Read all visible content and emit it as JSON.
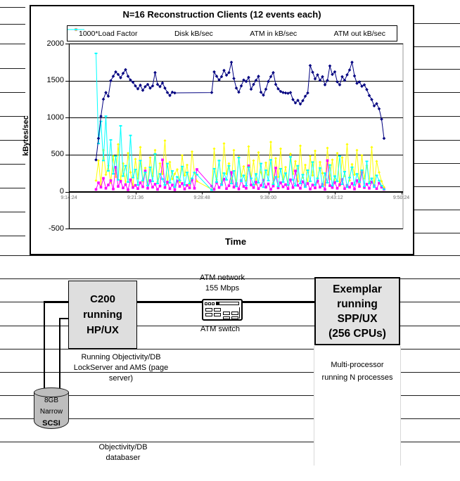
{
  "chart_data": {
    "type": "line",
    "title": "N=16 Reconstruction Clients (12 events each)",
    "xlabel": "Time",
    "ylabel": "kBytes/sec",
    "ylim": [
      -500,
      2000
    ],
    "y_ticks": [
      2000,
      1500,
      1000,
      500,
      0,
      -500
    ],
    "x_tick_labels": [
      "9:14:24",
      "9:21:36",
      "9:28:48",
      "9:36:00",
      "9:43:12",
      "9:50:24"
    ],
    "x_tick_seconds": [
      0,
      432,
      864,
      1296,
      1728,
      2160
    ],
    "time_base": "9:14:24",
    "grid": true,
    "legend_position": "top",
    "t_seconds": [
      176,
      192,
      208,
      224,
      240,
      256,
      272,
      288,
      304,
      320,
      336,
      352,
      368,
      384,
      400,
      416,
      432,
      448,
      464,
      480,
      496,
      512,
      528,
      544,
      560,
      576,
      592,
      608,
      624,
      640,
      656,
      672,
      688,
      704,
      720,
      736,
      752,
      768,
      784,
      800,
      816,
      832,
      928,
      944,
      960,
      976,
      992,
      1008,
      1024,
      1040,
      1056,
      1072,
      1088,
      1104,
      1120,
      1136,
      1152,
      1168,
      1184,
      1200,
      1216,
      1232,
      1248,
      1264,
      1280,
      1296,
      1312,
      1328,
      1344,
      1360,
      1376,
      1392,
      1408,
      1424,
      1440,
      1456,
      1472,
      1488,
      1504,
      1520,
      1536,
      1552,
      1568,
      1584,
      1600,
      1616,
      1632,
      1648,
      1664,
      1680,
      1696,
      1712,
      1728,
      1744,
      1760,
      1776,
      1792,
      1808,
      1824,
      1840,
      1856,
      1872,
      1888,
      1904,
      1920,
      1936,
      1952,
      1968,
      1984,
      2000,
      2016,
      2032,
      2048
    ],
    "series": [
      {
        "name": "1000*Load Factor",
        "color": "#000080",
        "marker": "diamond",
        "values": [
          430,
          720,
          1020,
          1250,
          1340,
          1290,
          1500,
          1560,
          1620,
          1585,
          1540,
          1600,
          1650,
          1560,
          1510,
          1480,
          1430,
          1390,
          1440,
          1370,
          1420,
          1450,
          1400,
          1430,
          1610,
          1450,
          1420,
          1470,
          1400,
          1340,
          1300,
          1345,
          1335,
          null,
          null,
          null,
          null,
          null,
          null,
          null,
          null,
          null,
          1340,
          1620,
          1560,
          1510,
          1555,
          1640,
          1575,
          1610,
          1750,
          1530,
          1400,
          1345,
          1430,
          1510,
          1490,
          1545,
          1385,
          1450,
          1505,
          1560,
          1345,
          1305,
          1385,
          1490,
          1555,
          1610,
          1450,
          1390,
          1355,
          1340,
          1335,
          1330,
          1340,
          1245,
          1200,
          1235,
          1185,
          1230,
          1290,
          1335,
          1705,
          1615,
          1525,
          1580,
          1505,
          1555,
          1445,
          1505,
          1700,
          1585,
          1620,
          1485,
          1445,
          1555,
          1505,
          1580,
          1645,
          1750,
          1565,
          1465,
          1485,
          1425,
          1445,
          1380,
          1300,
          1245,
          1160,
          1190,
          1120,
          980,
          720
        ]
      },
      {
        "name": "Disk kB/sec",
        "color": "#ff00ff",
        "marker": "square",
        "values": [
          30,
          120,
          60,
          180,
          45,
          90,
          150,
          35,
          330,
          70,
          140,
          50,
          95,
          25,
          160,
          55,
          85,
          40,
          120,
          65,
          280,
          45,
          150,
          60,
          100,
          30,
          75,
          430,
          55,
          130,
          40,
          90,
          25,
          145,
          70,
          110,
          35,
          85,
          50,
          160,
          45,
          300,
          75,
          30,
          125,
          55,
          95,
          170,
          40,
          80,
          260,
          60,
          110,
          35,
          150,
          70,
          45,
          350,
          90,
          55,
          130,
          40,
          85,
          155,
          60,
          105,
          30,
          75,
          320,
          50,
          120,
          65,
          95,
          40,
          160,
          55,
          280,
          85,
          45,
          135,
          70,
          110,
          35,
          90,
          50,
          145,
          60,
          100,
          30,
          420,
          80,
          55,
          125,
          45,
          95,
          165,
          40,
          85,
          60,
          110,
          35,
          150,
          70,
          260,
          55,
          100,
          45,
          130,
          80,
          40,
          115,
          60,
          30
        ]
      },
      {
        "name": "ATM in kB/sec",
        "color": "#ffff00",
        "marker": "diamond-small",
        "values": [
          150,
          420,
          90,
          560,
          230,
          350,
          120,
          480,
          200,
          640,
          160,
          380,
          100,
          520,
          260,
          80,
          440,
          180,
          600,
          140,
          320,
          90,
          460,
          210,
          560,
          130,
          380,
          240,
          690,
          110,
          400,
          170,
          240,
          300,
          130,
          490,
          220,
          360,
          90,
          540,
          250,
          140,
          30,
          580,
          160,
          420,
          110,
          650,
          240,
          380,
          130,
          560,
          90,
          470,
          210,
          340,
          150,
          610,
          180,
          420,
          100,
          530,
          260,
          140,
          390,
          230,
          670,
          120,
          450,
          200,
          580,
          160,
          330,
          90,
          510,
          240,
          410,
          140,
          620,
          190,
          360,
          110,
          480,
          220,
          550,
          130,
          400,
          250,
          90,
          590,
          170,
          430,
          120,
          520,
          80,
          460,
          210,
          640,
          150,
          370,
          230,
          560,
          100,
          490,
          180,
          350,
          130,
          600,
          90,
          410,
          260,
          140,
          60
        ]
      },
      {
        "name": "ATM out kB/sec",
        "color": "#00ffff",
        "marker": "dash",
        "values": [
          1870,
          650,
          950,
          420,
          1020,
          280,
          700,
          240,
          480,
          160,
          890,
          210,
          350,
          130,
          760,
          190,
          300,
          90,
          420,
          150,
          260,
          80,
          330,
          140,
          510,
          110,
          240,
          170,
          90,
          380,
          120,
          280,
          60,
          200,
          150,
          340,
          90,
          260,
          110,
          180,
          260,
          230,
          20,
          310,
          130,
          420,
          90,
          250,
          160,
          350,
          110,
          280,
          70,
          460,
          140,
          220,
          80,
          330,
          180,
          90,
          240,
          120,
          380,
          60,
          290,
          150,
          430,
          100,
          200,
          70,
          310,
          130,
          250,
          90,
          470,
          160,
          80,
          350,
          110,
          230,
          60,
          290,
          140,
          400,
          90,
          180,
          320,
          70,
          250,
          120,
          360,
          80,
          210,
          140,
          480,
          100,
          270,
          60,
          190,
          330,
          90,
          240,
          130,
          290,
          70,
          410,
          110,
          180,
          60,
          220,
          150,
          80,
          30
        ]
      }
    ]
  },
  "diagram": {
    "c200_line1": "C200",
    "c200_line2": "running",
    "c200_line3": "HP/UX",
    "exemplar_line1": "Exemplar",
    "exemplar_line2": "running",
    "exemplar_line3": "SPP/UX",
    "exemplar_line4": "(256 CPUs)",
    "atm_network_label": "ATM network",
    "atm_rate_label": "155 Mbps",
    "atm_switch_label": "ATM switch",
    "lockserver_line1": "Running Objectivity/DB",
    "lockserver_line2": "LockServer and AMS (page",
    "lockserver_line3": "server)",
    "multiproc_line1": "Multi-processor",
    "multiproc_line2": "running N processes",
    "disk_line1": "8GB",
    "disk_line2": "Narrow",
    "disk_line3": "SCSI",
    "db_line1": "Objectivity/DB",
    "db_line2": "databaser"
  },
  "colors": {
    "load_factor": "#000080",
    "disk": "#ff00ff",
    "atm_in": "#ffff00",
    "atm_out": "#00ffff",
    "plot_border": "#9a9a9a",
    "box_fill": "#dedede",
    "cylinder_fill": "#bdbdbd"
  }
}
